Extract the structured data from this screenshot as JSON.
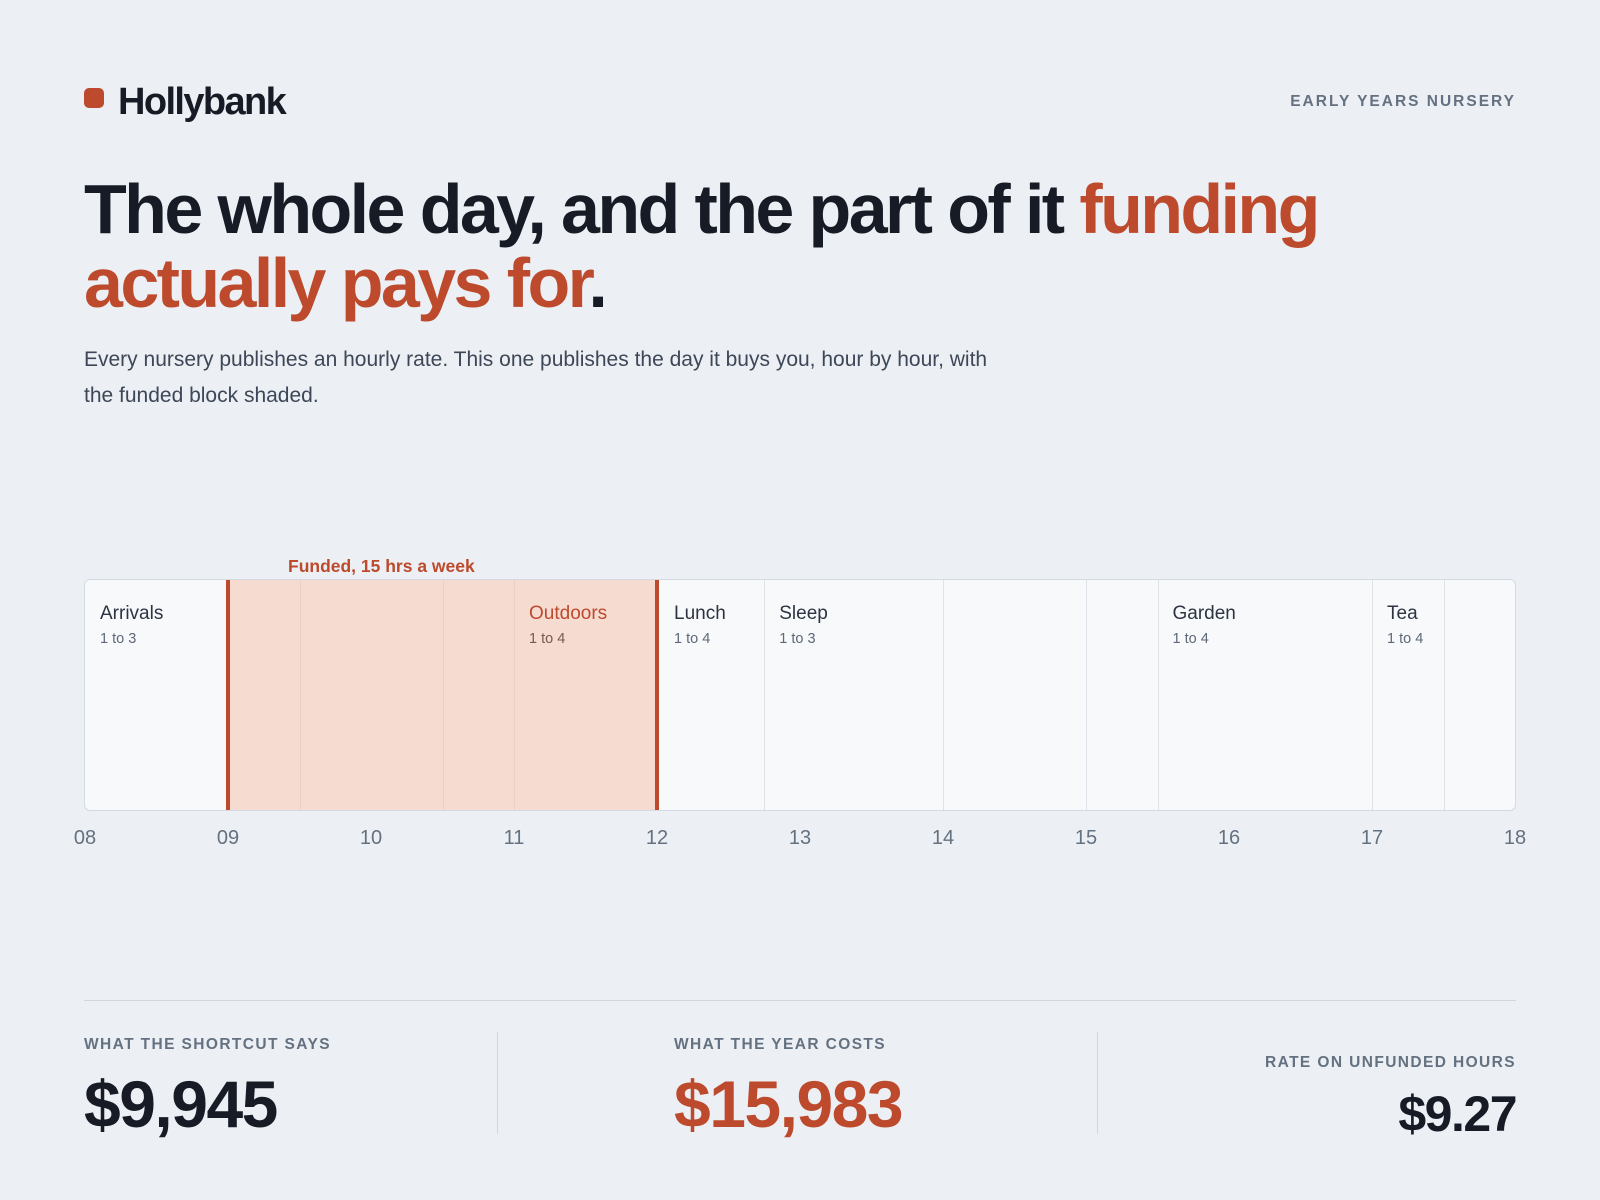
{
  "brand": {
    "name": "Hollybank",
    "tagline": "EARLY YEARS NURSERY"
  },
  "colors": {
    "accent": "#bd4a2c",
    "band": "#f6dbd1",
    "ink": "#161b26",
    "muted": "#647181",
    "background": "#eceff3"
  },
  "hero": {
    "headline_dark": "The whole day, and the part of it ",
    "headline_accent": "funding actually pays for",
    "headline_end": ".",
    "lede": "Every nursery publishes an hourly rate. This one publishes the day it buys you, hour by hour, with the funded block shaded."
  },
  "timeline": {
    "funded_label": "Funded, 15 hrs a week",
    "funded_start": 9,
    "funded_end": 12,
    "day_start": 8,
    "day_end": 18,
    "hours": [
      "08",
      "09",
      "10",
      "11",
      "12",
      "13",
      "14",
      "15",
      "16",
      "17",
      "18"
    ],
    "boundaries": [
      9.5,
      10.5,
      11,
      12.75,
      14,
      15,
      15.5,
      17,
      17.5
    ],
    "activities": [
      {
        "name": "Arrivals",
        "ratio": "1 to 3",
        "start": 8
      },
      {
        "name": "Outdoors",
        "ratio": "1 to 4",
        "start": 11
      },
      {
        "name": "Lunch",
        "ratio": "1 to 4",
        "start": 12
      },
      {
        "name": "Sleep",
        "ratio": "1 to 3",
        "start": 12.75
      },
      {
        "name": "Garden",
        "ratio": "1 to 4",
        "start": 15.5
      },
      {
        "name": "Tea",
        "ratio": "1 to 4",
        "start": 17
      }
    ]
  },
  "stats": {
    "shortcut": {
      "label": "WHAT THE SHORTCUT SAYS",
      "value": "$9,945"
    },
    "year_cost": {
      "label": "WHAT THE YEAR COSTS",
      "value": "$15,983"
    },
    "unfunded_rate": {
      "label": "RATE ON UNFUNDED HOURS",
      "value": "$9.27"
    }
  }
}
